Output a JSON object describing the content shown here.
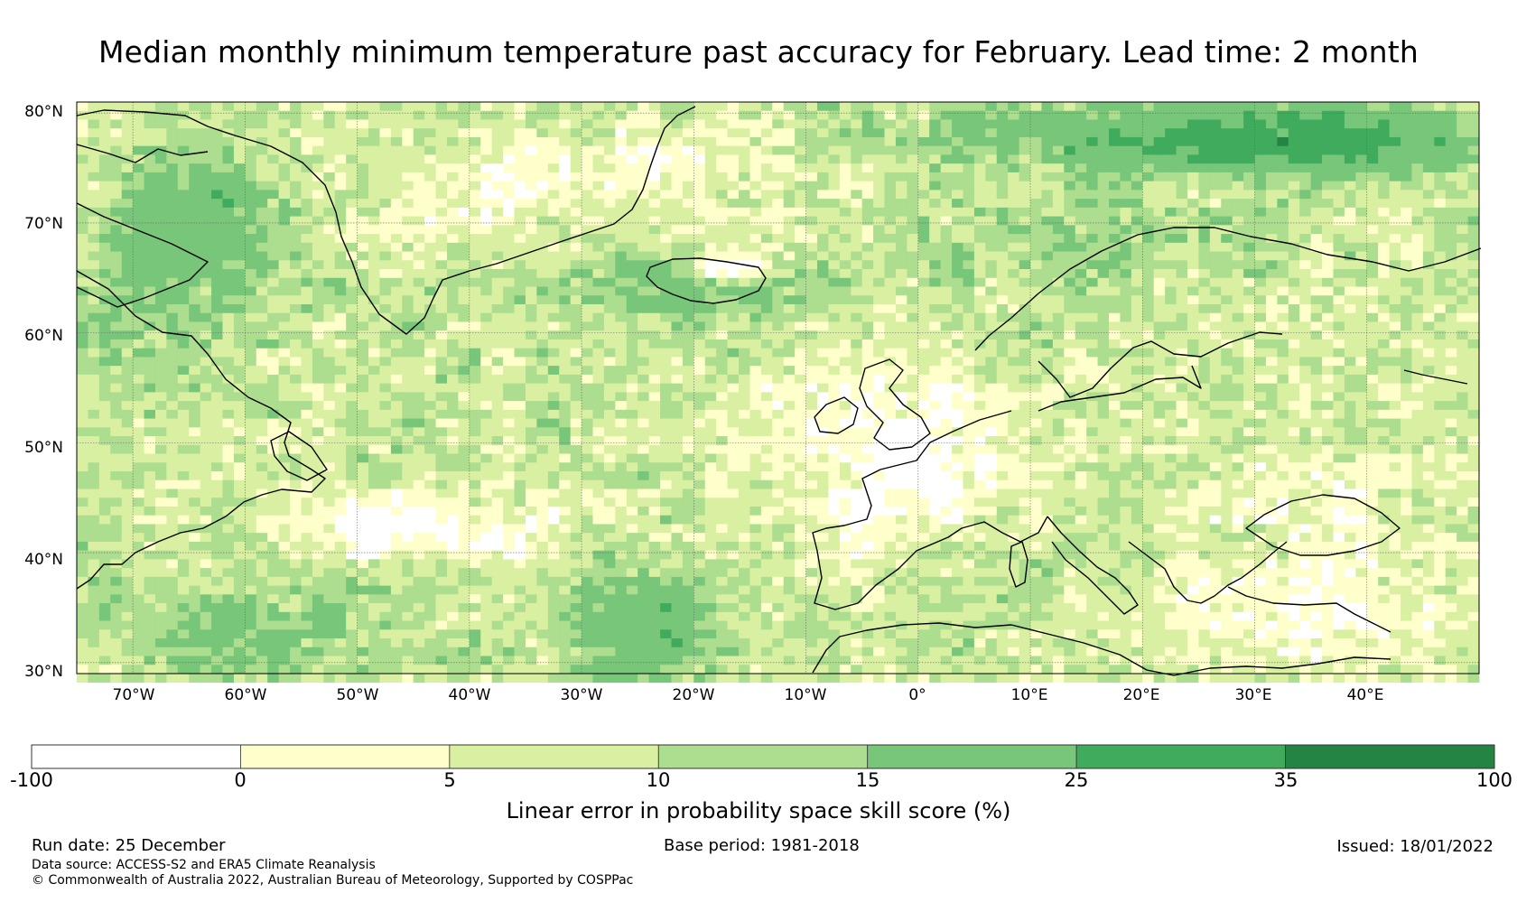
{
  "title": "Median monthly minimum temperature past accuracy for February. Lead time: 2 month",
  "map": {
    "lat_ticks": [
      "80°N",
      "70°N",
      "60°N",
      "50°N",
      "40°N",
      "30°N"
    ],
    "lat_values": [
      80,
      70,
      60,
      50,
      40,
      30
    ],
    "lon_ticks": [
      "70°W",
      "60°W",
      "50°W",
      "40°W",
      "30°W",
      "20°W",
      "10°W",
      "0°",
      "10°E",
      "20°E",
      "30°E",
      "40°E"
    ],
    "lon_values": [
      -70,
      -60,
      -50,
      -40,
      -30,
      -20,
      -10,
      0,
      10,
      20,
      30,
      40
    ],
    "extent": {
      "lon_min": -75,
      "lon_max": 50,
      "lat_min": 29,
      "lat_max": 81
    },
    "gridlines": true
  },
  "colorbar": {
    "bounds": [
      "-100",
      "0",
      "5",
      "10",
      "15",
      "25",
      "35",
      "100"
    ],
    "colors": [
      "#ffffff",
      "#ffffcc",
      "#d9f0a3",
      "#addd8e",
      "#78c679",
      "#41ab5d",
      "#238443"
    ],
    "label": "Linear error in probability space skill score (%)"
  },
  "footer": {
    "run_date": "Run date: 25 December",
    "base_period": "Base period: 1981-2018",
    "issued": "Issued: 18/01/2022",
    "data_source": "Data source: ACCESS-S2 and ERA5 Climate Reanalysis",
    "copyright": "© Commonwealth of Australia 2022, Australian Bureau of Meteorology, Supported by COSPPac"
  }
}
